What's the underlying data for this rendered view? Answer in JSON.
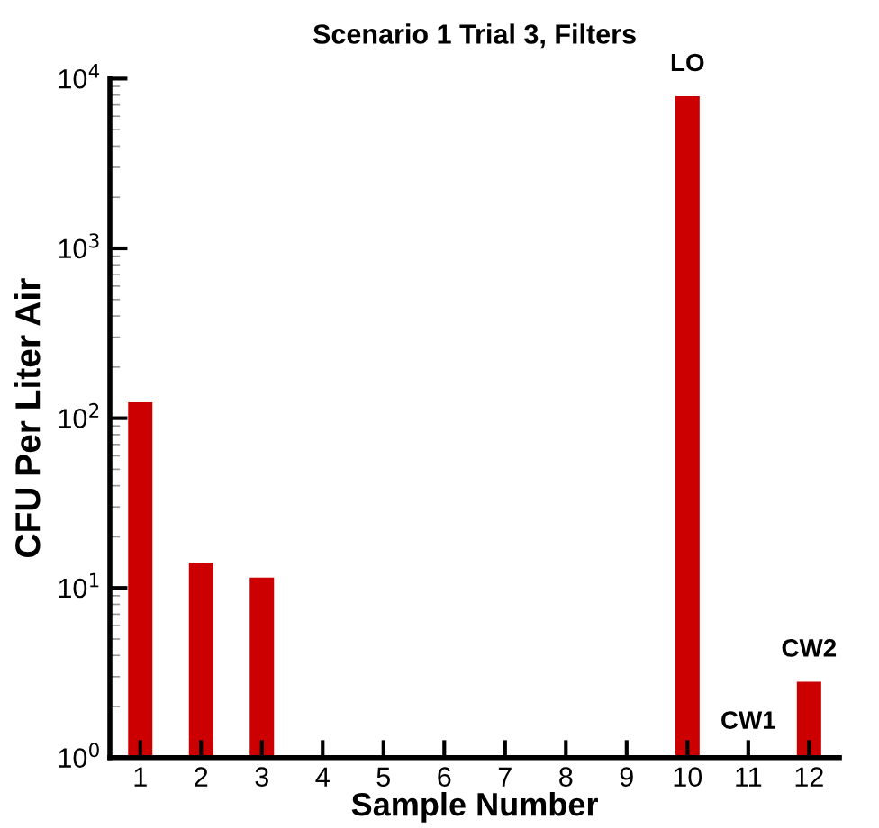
{
  "chart_data": {
    "type": "bar",
    "title": "Scenario 1 Trial 3, Filters",
    "xlabel": "Sample Number",
    "ylabel": "CFU Per Liter Air",
    "x": [
      1,
      2,
      3,
      4,
      5,
      6,
      7,
      8,
      9,
      10,
      11,
      12
    ],
    "values": [
      124,
      14.1,
      11.5,
      null,
      null,
      null,
      null,
      null,
      null,
      7870,
      null,
      2.8
    ],
    "color": "#cc0000",
    "log": true,
    "xlim": [
      0.5,
      12.5
    ],
    "xticks": [
      1,
      2,
      3,
      4,
      5,
      6,
      7,
      8,
      9,
      10,
      11,
      12
    ],
    "ylim": [
      1,
      10000
    ],
    "yticks": [
      {
        "value": 1,
        "label": "10$^{0}$"
      },
      {
        "value": 10,
        "label": "10$^{1}$"
      },
      {
        "value": 100,
        "label": "10$^{2}$"
      },
      {
        "value": 1000,
        "label": "10$^{3}$"
      },
      {
        "value": 10000,
        "label": "10$^{4}$"
      }
    ],
    "grid": false,
    "annotations": [
      {
        "text": "LO",
        "x": 10,
        "y": 7870
      },
      "CW1",
      {
        "text": "CW2",
        "x": 12,
        "y": 2.8
      }
    ]
  }
}
